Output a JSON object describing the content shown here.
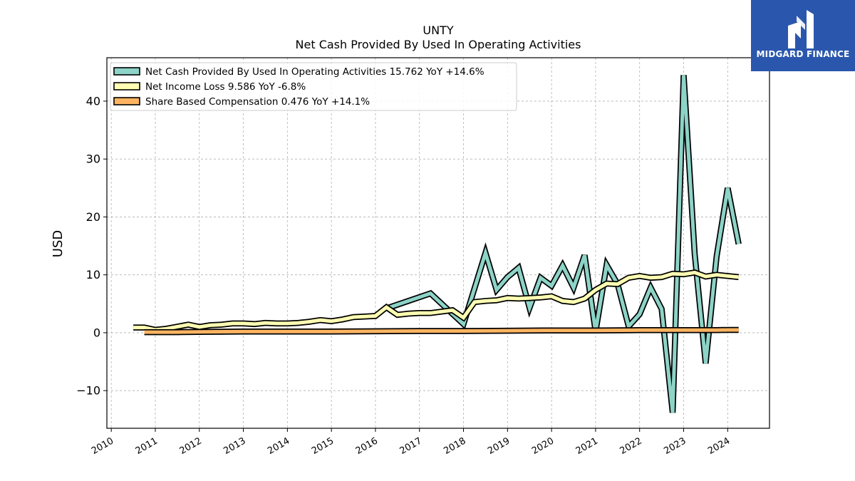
{
  "chart_data": {
    "type": "line",
    "title": "UNTY",
    "subtitle": "Net Cash Provided By Used In Operating Activities",
    "ylabel": "USD",
    "xlabel": "",
    "xlim": [
      2009.9,
      2024.95
    ],
    "ylim": [
      -16.5,
      47.5
    ],
    "x_ticks": [
      2010,
      2011,
      2012,
      2013,
      2014,
      2015,
      2016,
      2017,
      2018,
      2019,
      2020,
      2021,
      2022,
      2023,
      2024
    ],
    "y_ticks": [
      -10,
      0,
      10,
      20,
      30,
      40
    ],
    "grid": true,
    "legend_position": "top-left",
    "series": [
      {
        "name": "Net Cash Provided By Used In Operating Activities",
        "legend": "Net Cash Provided By Used In Operating Activities  15.762 YoY +14.6%",
        "color": "#8dd3c7",
        "points": [
          [
            2016.25,
            4.2
          ],
          [
            2017.25,
            6.8
          ],
          [
            2018.0,
            1.5
          ],
          [
            2018.5,
            13.8
          ],
          [
            2018.75,
            7.4
          ],
          [
            2019.0,
            9.6
          ],
          [
            2019.25,
            11.2
          ],
          [
            2019.5,
            4.3
          ],
          [
            2019.75,
            9.5
          ],
          [
            2020.0,
            8.1
          ],
          [
            2020.25,
            11.6
          ],
          [
            2020.5,
            7.8
          ],
          [
            2020.75,
            13.4
          ],
          [
            2021.0,
            0.2
          ],
          [
            2021.25,
            11.7
          ],
          [
            2021.5,
            8.4
          ],
          [
            2021.75,
            1.1
          ],
          [
            2022.0,
            3.2
          ],
          [
            2022.25,
            7.8
          ],
          [
            2022.5,
            4.1
          ],
          [
            2022.75,
            -13.8
          ],
          [
            2023.0,
            44.5
          ],
          [
            2023.25,
            13.6
          ],
          [
            2023.5,
            -5.3
          ],
          [
            2023.75,
            13.2
          ],
          [
            2024.0,
            25.0
          ],
          [
            2024.25,
            15.3
          ]
        ]
      },
      {
        "name": "Net Income Loss",
        "legend": "Net Income Loss  9.586 YoY -6.8%",
        "color": "#ffffb3",
        "points": [
          [
            2010.5,
            0.9
          ],
          [
            2010.75,
            0.9
          ],
          [
            2011.0,
            0.5
          ],
          [
            2011.25,
            0.7
          ],
          [
            2011.75,
            1.4
          ],
          [
            2012.0,
            1.0
          ],
          [
            2012.25,
            1.3
          ],
          [
            2012.5,
            1.4
          ],
          [
            2012.75,
            1.6
          ],
          [
            2013.0,
            1.6
          ],
          [
            2013.25,
            1.5
          ],
          [
            2013.5,
            1.7
          ],
          [
            2013.75,
            1.6
          ],
          [
            2014.0,
            1.6
          ],
          [
            2014.25,
            1.7
          ],
          [
            2014.5,
            1.9
          ],
          [
            2014.75,
            2.2
          ],
          [
            2015.0,
            2.0
          ],
          [
            2015.25,
            2.3
          ],
          [
            2015.5,
            2.7
          ],
          [
            2015.75,
            2.8
          ],
          [
            2016.0,
            2.9
          ],
          [
            2016.25,
            4.4
          ],
          [
            2016.5,
            3.1
          ],
          [
            2016.75,
            3.3
          ],
          [
            2017.0,
            3.4
          ],
          [
            2017.25,
            3.4
          ],
          [
            2017.75,
            3.9
          ],
          [
            2018.0,
            2.6
          ],
          [
            2018.25,
            5.3
          ],
          [
            2018.5,
            5.5
          ],
          [
            2018.75,
            5.6
          ],
          [
            2019.0,
            6.0
          ],
          [
            2019.25,
            5.9
          ],
          [
            2019.5,
            6.0
          ],
          [
            2019.75,
            6.1
          ],
          [
            2020.0,
            6.3
          ],
          [
            2020.25,
            5.5
          ],
          [
            2020.5,
            5.3
          ],
          [
            2020.75,
            5.9
          ],
          [
            2021.0,
            7.4
          ],
          [
            2021.25,
            8.5
          ],
          [
            2021.5,
            8.4
          ],
          [
            2021.75,
            9.5
          ],
          [
            2022.0,
            9.8
          ],
          [
            2022.25,
            9.5
          ],
          [
            2022.5,
            9.6
          ],
          [
            2022.75,
            10.2
          ],
          [
            2023.0,
            10.1
          ],
          [
            2023.25,
            10.4
          ],
          [
            2023.5,
            9.7
          ],
          [
            2023.75,
            10.0
          ],
          [
            2024.0,
            9.8
          ],
          [
            2024.25,
            9.6
          ]
        ]
      },
      {
        "name": "Share Based Compensation",
        "legend": "Share Based Compensation  0.476 YoY +14.1%",
        "color": "#fdb462",
        "points": [
          [
            2010.75,
            0.1
          ],
          [
            2011.0,
            0.1
          ],
          [
            2011.5,
            0.1
          ],
          [
            2012.0,
            0.15
          ],
          [
            2013.0,
            0.2
          ],
          [
            2014.0,
            0.2
          ],
          [
            2015.0,
            0.2
          ],
          [
            2016.0,
            0.25
          ],
          [
            2017.0,
            0.3
          ],
          [
            2018.0,
            0.3
          ],
          [
            2019.0,
            0.35
          ],
          [
            2020.0,
            0.4
          ],
          [
            2021.0,
            0.4
          ],
          [
            2022.0,
            0.45
          ],
          [
            2023.0,
            0.45
          ],
          [
            2023.75,
            0.46
          ],
          [
            2024.0,
            0.48
          ],
          [
            2024.25,
            0.48
          ]
        ]
      }
    ]
  },
  "watermark": {
    "text": "MIDGARD FINANCE",
    "bg_color": "#2a57ad"
  }
}
